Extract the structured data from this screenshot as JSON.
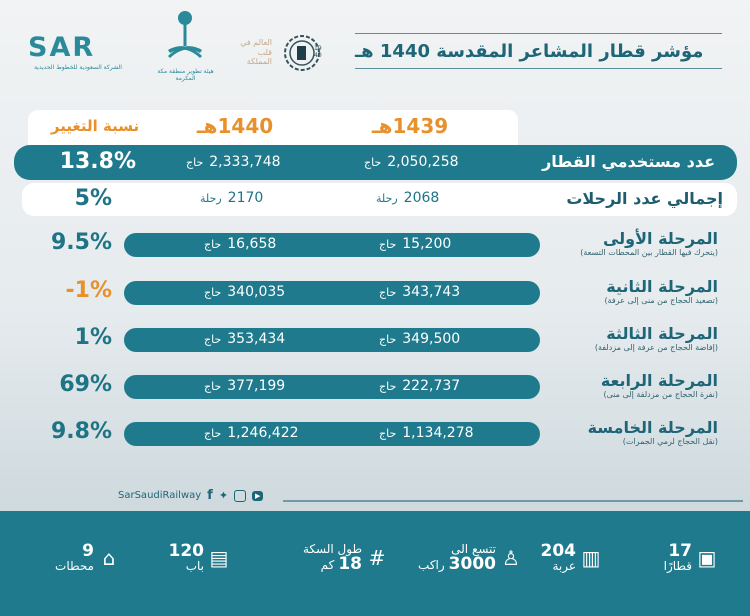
{
  "header": {
    "title": "مؤشر قطار المشاعر المقدسة  1440 هـ",
    "logos": {
      "sar": "SAR",
      "sar_subtitle": "الشركة السعودية للخطوط الحديدية",
      "mecca_authority": "هيئة تطوير منطقة مكة المكرمة",
      "slogan": "العالم في قلب المملكة",
      "badge": "1940"
    }
  },
  "table": {
    "headers": {
      "y1439": "1439هـ",
      "y1440": "1440هـ",
      "change": "نسبة التغيير"
    },
    "rows": [
      {
        "label": "عدد مستخدمي القطار",
        "v1439": "2,050,258",
        "v1440": "2,333,748",
        "unit": "حاج",
        "change": "13.8%"
      },
      {
        "label": "إجمالي عدد الرحلات",
        "v1439": "2068",
        "v1440": "2170",
        "unit": "رحلة",
        "change": "5%"
      }
    ]
  },
  "stages": [
    {
      "title": "المرحلة الأولى",
      "subtitle": "(يتحرك فيها القطار بين المحطات التسعة)",
      "v1439": "15,200",
      "v1440": "16,658",
      "unit": "حاج",
      "change": "9.5%",
      "change_color": "#1e7385"
    },
    {
      "title": "المرحلة الثانية",
      "subtitle": "(تصعيد الحجاج من منى إلى عرفة)",
      "v1439": "343,743",
      "v1440": "340,035",
      "unit": "حاج",
      "change": "-1%",
      "change_color": "#e8902c"
    },
    {
      "title": "المرحلة الثالثة",
      "subtitle": "(إفاضة  الحجاج من عرفة إلى مزدلفة)",
      "v1439": "349,500",
      "v1440": "353,434",
      "unit": "حاج",
      "change": "1%",
      "change_color": "#1e7385"
    },
    {
      "title": "المرحلة الرابعة",
      "subtitle": "(نفرة الحجاج من مزدلفة إلى منى)",
      "v1439": "222,737",
      "v1440": "377,199",
      "unit": "حاج",
      "change": "69%",
      "change_color": "#1e7385"
    },
    {
      "title": "المرحلة الخامسة",
      "subtitle": "(نقل الحجاج لرمي الجمرات)",
      "v1439": "1,134,278",
      "v1440": "1,246,422",
      "unit": "حاج",
      "change": "9.8%",
      "change_color": "#1e7385"
    }
  ],
  "social": {
    "handle": "SarSaudiRailway",
    "icons": [
      "facebook-icon",
      "twitter-icon",
      "instagram-icon",
      "youtube-icon"
    ]
  },
  "stats": [
    {
      "num": "17",
      "label": "قطارًا",
      "icon": "train-icon"
    },
    {
      "num": "204",
      "label": "عربة",
      "icon": "railcar-icon"
    },
    {
      "num": "3000",
      "pre": "تتسع الى",
      "label": "راكب",
      "icon": "passengers-icon"
    },
    {
      "num": "18",
      "pre": "طول السكة",
      "label": "كم",
      "icon": "track-icon"
    },
    {
      "num": "120",
      "label": "باب",
      "icon": "doors-icon"
    },
    {
      "num": "9",
      "label": "محطات",
      "icon": "station-icon"
    }
  ],
  "colors": {
    "teal": "#1e7a8c",
    "orange": "#e8902c"
  }
}
